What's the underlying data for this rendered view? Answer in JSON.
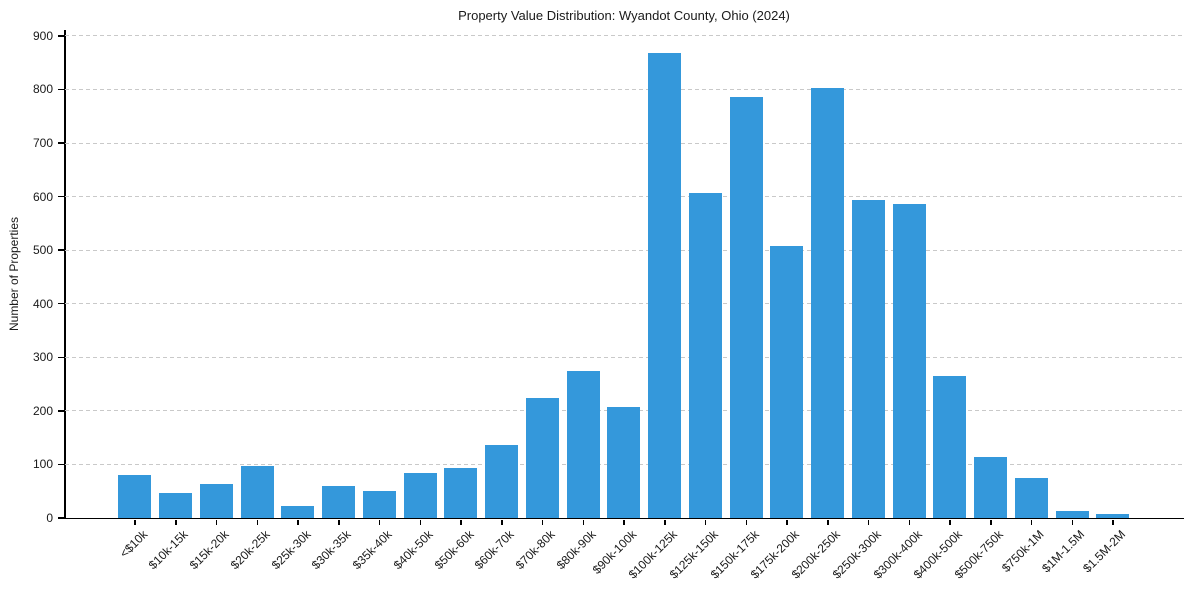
{
  "chart_data": {
    "type": "bar",
    "title": "Property Value Distribution: Wyandot County, Ohio (2024)",
    "xlabel": "",
    "ylabel": "Number of Properties",
    "categories": [
      "<$10k",
      "$10k-15k",
      "$15k-20k",
      "$20k-25k",
      "$25k-30k",
      "$30k-35k",
      "$35k-40k",
      "$40k-50k",
      "$50k-60k",
      "$60k-70k",
      "$70k-80k",
      "$80k-90k",
      "$90k-100k",
      "$100k-125k",
      "$125k-150k",
      "$150k-175k",
      "$175k-200k",
      "$200k-250k",
      "$250k-300k",
      "$300k-400k",
      "$400k-500k",
      "$500k-750k",
      "$750k-1M",
      "$1M-1.5M",
      "$1.5M-2M"
    ],
    "values": [
      81,
      47,
      64,
      98,
      23,
      60,
      50,
      84,
      93,
      136,
      224,
      275,
      208,
      868,
      607,
      786,
      508,
      802,
      593,
      587,
      265,
      114,
      75,
      13,
      7
    ],
    "yticks": [
      0,
      100,
      200,
      300,
      400,
      500,
      600,
      700,
      800,
      900
    ],
    "ylim": [
      0,
      911
    ],
    "grid": "horizontal-dashed",
    "legend": "none",
    "bar_color": "#3498db",
    "grid_color": "#c9c9c9",
    "axis_color": "#000000",
    "text_color": "#1a1a1a",
    "background": "#ffffff"
  }
}
